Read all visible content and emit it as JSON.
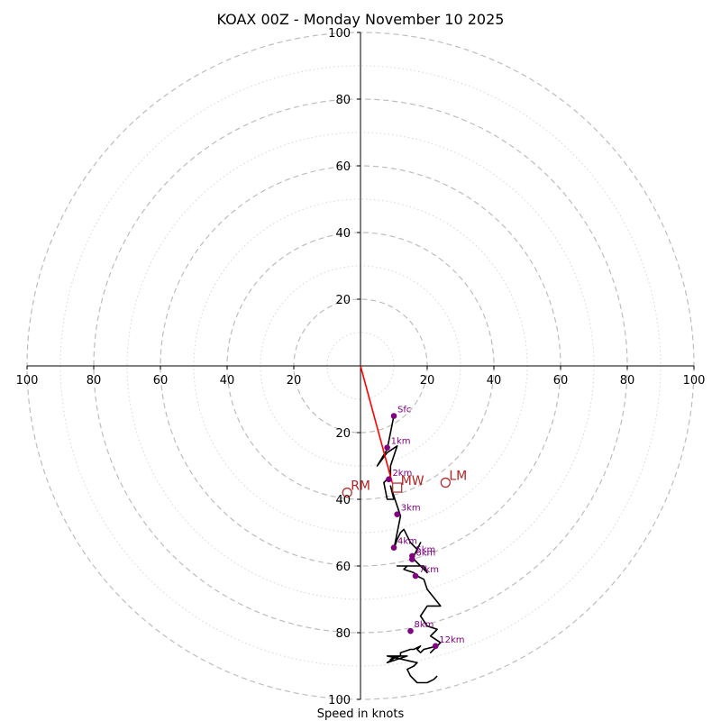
{
  "chart_data": {
    "type": "hodograph",
    "title": "KOAX 00Z - Monday November 10 2025",
    "xlabel": "Speed in knots",
    "units": "knots",
    "max_speed": 100,
    "major_rings": [
      20,
      40,
      60,
      80,
      100
    ],
    "minor_rings": [
      10,
      30,
      50,
      70,
      90
    ],
    "ticks": [
      20,
      40,
      60,
      80,
      100
    ],
    "colors": {
      "trace": "#000000",
      "height_markers": "#800080",
      "storm_motion": "#b22222",
      "shear_vector": "#ff0000",
      "ring_major": "#bdbdbd",
      "ring_minor": "#d6d6d6",
      "axes": "#000000"
    },
    "hodograph": {
      "u": [
        10,
        9,
        8,
        5,
        8,
        11,
        10,
        9,
        9,
        7,
        8,
        10,
        9,
        10,
        11,
        12,
        10,
        11,
        12,
        13,
        14,
        15,
        16,
        17,
        18,
        16,
        16,
        18,
        20,
        20,
        19,
        15,
        15,
        11,
        14,
        13,
        16,
        17,
        19,
        20,
        24,
        20,
        18,
        20,
        23,
        22,
        21,
        24,
        21,
        23,
        19,
        18,
        17,
        18,
        16,
        15,
        12,
        12,
        9,
        11,
        8,
        14,
        8,
        17,
        16,
        14,
        15,
        17,
        20,
        22,
        23
      ],
      "v": [
        -15,
        -20,
        -25,
        -30,
        -26,
        -24,
        -27,
        -30,
        -33,
        -35,
        -40,
        -40,
        -36,
        -39,
        -42,
        -45,
        -55,
        -52,
        -50,
        -49,
        -51,
        -53,
        -54,
        -55,
        -53,
        -57,
        -58,
        -60,
        -62,
        -62,
        -60,
        -60,
        -60,
        -60,
        -60,
        -61,
        -62,
        -63,
        -64,
        -67,
        -72,
        -72,
        -75,
        -78,
        -79,
        -80,
        -81,
        -83,
        -86,
        -84,
        -85,
        -86,
        -85,
        -84,
        -85,
        -85,
        -86,
        -87,
        -88,
        -87,
        -89,
        -87,
        -87,
        -89,
        -90,
        -91,
        -93,
        -95,
        -95,
        -94,
        -93
      ]
    },
    "height_markers": [
      {
        "label": "Sfc",
        "u": 10,
        "v": -15
      },
      {
        "label": "1km",
        "u": 8,
        "v": -24.5
      },
      {
        "label": "2km",
        "u": 8.5,
        "v": -34
      },
      {
        "label": "3km",
        "u": 11,
        "v": -44.5
      },
      {
        "label": "4km",
        "u": 10,
        "v": -54.5
      },
      {
        "label": "5km",
        "u": 15.5,
        "v": -57
      },
      {
        "label": "6km",
        "u": 15.5,
        "v": -58
      },
      {
        "label": "7km",
        "u": 16.5,
        "v": -63
      },
      {
        "label": "8km",
        "u": 15,
        "v": -79.5
      },
      {
        "label": "12km",
        "u": 22.5,
        "v": -84
      }
    ],
    "storm_motion": [
      {
        "label": "RM",
        "u": -4,
        "v": -38,
        "marker": "circle"
      },
      {
        "label": "LM",
        "u": 25.5,
        "v": -35,
        "marker": "circle"
      },
      {
        "label": "MW",
        "u": 11,
        "v": -36.5,
        "marker": "square"
      }
    ],
    "shear_vector": {
      "u0": 0,
      "v0": 0,
      "u1": 9.5,
      "v1": -35
    }
  }
}
